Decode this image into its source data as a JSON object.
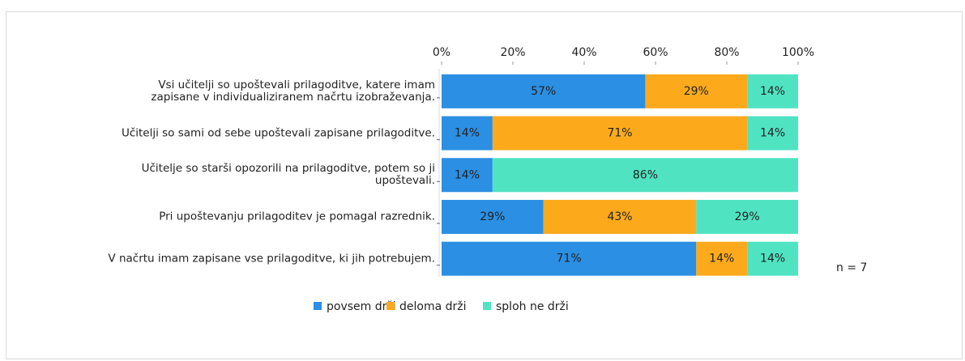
{
  "chart_data": {
    "type": "bar",
    "orientation": "horizontal",
    "stacked": true,
    "categories": [
      "Vsi učitelji so upoštevali prilagoditve, katere imam\nzapisane v individualiziranem načrtu izobraževanja.",
      "Učitelji so sami od sebe upoštevali zapisane prilagoditve.",
      "Učitelje so starši opozorili na prilagoditve, potem so ji\nupoštevali.",
      "Pri upoštevanju prilagoditev je pomagal razrednik.",
      "V načrtu imam zapisane vse prilagoditve, ki jih potrebujem."
    ],
    "series": [
      {
        "name": "povsem drži",
        "color": "#2b8fe3",
        "values": [
          57.14,
          14.29,
          14.29,
          28.57,
          71.43
        ],
        "value_labels": [
          "57%",
          "14%",
          "14%",
          "29%",
          "71%"
        ]
      },
      {
        "name": "deloma drži",
        "color": "#fcaa1c",
        "values": [
          28.57,
          71.43,
          null,
          42.86,
          14.29
        ],
        "value_labels": [
          "29%",
          "71%",
          null,
          "43%",
          "14%"
        ]
      },
      {
        "name": "sploh ne drži",
        "color": "#50e3c2",
        "values": [
          14.29,
          14.29,
          85.71,
          28.57,
          14.29
        ],
        "value_labels": [
          "14%",
          "14%",
          "86%",
          "29%",
          "14%"
        ]
      }
    ],
    "xlim": [
      0,
      100
    ],
    "xticks": [
      {
        "value": 0,
        "label": "0%"
      },
      {
        "value": 20,
        "label": "20%"
      },
      {
        "value": 40,
        "label": "40%"
      },
      {
        "value": 60,
        "label": "60%"
      },
      {
        "value": 80,
        "label": "80%"
      },
      {
        "value": 100,
        "label": "100%"
      }
    ],
    "annotation": "n = 7",
    "legend": "bottom"
  }
}
